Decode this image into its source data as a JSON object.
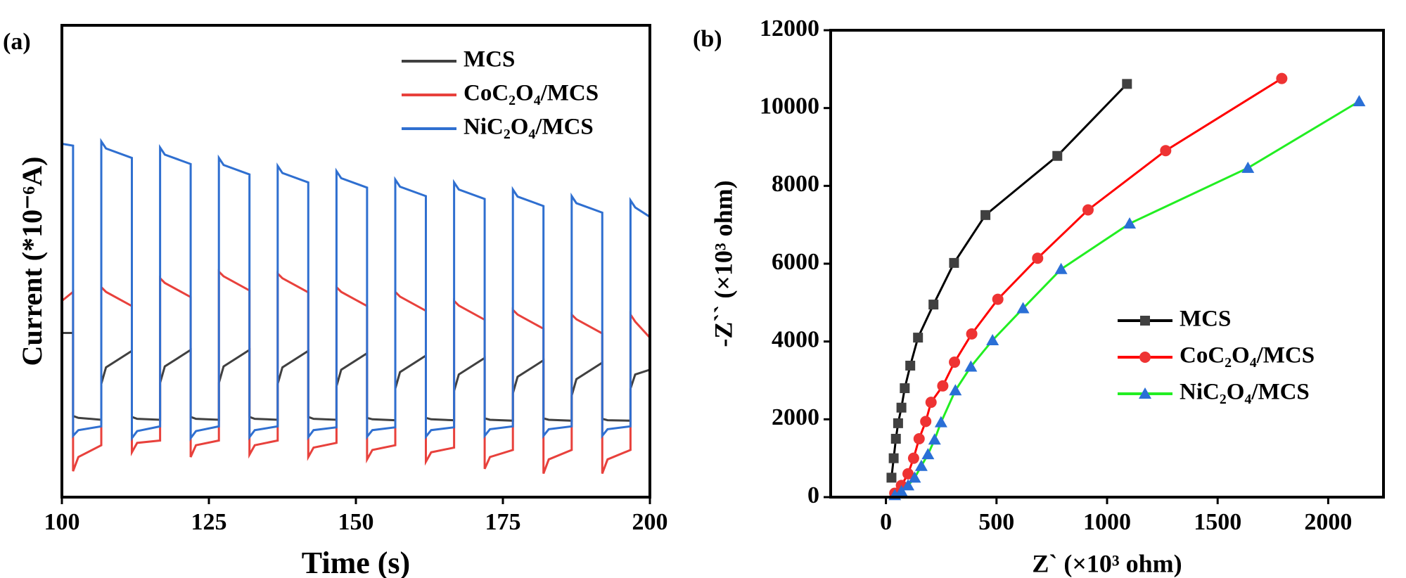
{
  "chart_data": [
    {
      "type": "line",
      "panel_label": "(a)",
      "xlabel": "Time (s)",
      "ylabel": "Current (*10⁻⁶A)",
      "xlim": [
        100,
        200
      ],
      "xticks": [
        100,
        125,
        150,
        175,
        200
      ],
      "ylim": [
        0,
        10
      ],
      "legend": "upper right",
      "x": [
        100,
        101.9,
        101.9,
        102.8,
        106.7,
        106.7,
        107.5,
        111.9,
        111.9,
        112.8,
        116.7,
        116.7,
        117.5,
        121.9,
        121.9,
        122.8,
        126.7,
        126.7,
        127.5,
        131.9,
        131.9,
        132.8,
        136.7,
        136.7,
        137.5,
        141.9,
        141.9,
        142.8,
        146.7,
        146.7,
        147.5,
        151.9,
        151.9,
        152.8,
        156.7,
        156.7,
        157.5,
        161.9,
        161.9,
        162.8,
        166.7,
        166.7,
        167.5,
        171.9,
        171.9,
        172.8,
        176.7,
        176.7,
        177.5,
        181.9,
        181.9,
        182.8,
        186.7,
        186.7,
        187.5,
        191.9,
        191.9,
        192.8,
        196.7,
        196.7,
        197.5,
        200
      ],
      "series": [
        {
          "name": "MCS",
          "color": "#404040",
          "values": [
            3.48,
            3.48,
            1.72,
            1.68,
            1.64,
            2.4,
            2.75,
            3.1,
            1.7,
            1.66,
            1.64,
            2.42,
            2.77,
            3.12,
            1.7,
            1.66,
            1.64,
            2.42,
            2.77,
            3.12,
            1.7,
            1.66,
            1.64,
            2.4,
            2.75,
            3.1,
            1.7,
            1.66,
            1.64,
            2.35,
            2.7,
            3.05,
            1.68,
            1.65,
            1.63,
            2.3,
            2.65,
            3.0,
            1.68,
            1.65,
            1.63,
            2.25,
            2.6,
            2.95,
            1.67,
            1.64,
            1.62,
            2.2,
            2.55,
            2.9,
            1.67,
            1.64,
            1.62,
            2.15,
            2.5,
            2.85,
            1.66,
            1.63,
            1.62,
            2.3,
            2.6,
            2.7
          ]
        },
        {
          "name": "CoC₂O₄/MCS",
          "color": "#e8413c",
          "values": [
            4.16,
            4.35,
            0.55,
            0.85,
            1.1,
            4.45,
            4.35,
            4.05,
            0.95,
            1.15,
            1.2,
            4.64,
            4.54,
            4.24,
            0.85,
            1.1,
            1.2,
            4.78,
            4.68,
            4.38,
            0.9,
            1.1,
            1.2,
            4.74,
            4.64,
            4.34,
            0.85,
            1.05,
            1.15,
            4.45,
            4.35,
            4.05,
            0.8,
            1.0,
            1.1,
            4.35,
            4.25,
            3.95,
            0.75,
            0.95,
            1.05,
            4.16,
            4.06,
            3.76,
            0.6,
            0.85,
            1.0,
            3.97,
            3.87,
            3.57,
            0.5,
            0.8,
            1.0,
            3.87,
            3.77,
            3.47,
            0.5,
            0.8,
            1.0,
            3.87,
            3.72,
            3.38
          ]
        },
        {
          "name": "NiC₂O₄/MCS",
          "color": "#2f6fd0",
          "values": [
            7.49,
            7.45,
            1.3,
            1.42,
            1.5,
            7.54,
            7.39,
            7.19,
            1.25,
            1.4,
            1.5,
            7.41,
            7.26,
            7.06,
            1.25,
            1.4,
            1.5,
            7.19,
            7.04,
            6.84,
            1.27,
            1.42,
            1.5,
            7.02,
            6.87,
            6.67,
            1.27,
            1.42,
            1.48,
            6.91,
            6.76,
            6.56,
            1.28,
            1.42,
            1.48,
            6.73,
            6.58,
            6.38,
            1.28,
            1.42,
            1.48,
            6.67,
            6.52,
            6.32,
            1.3,
            1.44,
            1.5,
            6.52,
            6.37,
            6.17,
            1.3,
            1.44,
            1.5,
            6.38,
            6.23,
            6.03,
            1.3,
            1.44,
            1.5,
            6.29,
            6.14,
            5.94
          ]
        }
      ]
    },
    {
      "type": "line",
      "panel_label": "(b)",
      "xlabel": "Z` (×10³ ohm)",
      "ylabel": "-Z`` (×10³ ohm)",
      "xlim": [
        -250,
        2250
      ],
      "xticks": [
        0,
        500,
        1000,
        1500,
        2000
      ],
      "ylim": [
        0,
        12000
      ],
      "yticks": [
        0,
        2000,
        4000,
        6000,
        8000,
        10000,
        12000
      ],
      "legend": "center right",
      "series": [
        {
          "name": "MCS",
          "color": "#000000",
          "marker": "square",
          "marker_color": "#404040",
          "x": [
            1090,
            775,
            450,
            308,
            215,
            145,
            110,
            85,
            70,
            55,
            45,
            35,
            25
          ],
          "values": [
            10620,
            8770,
            7250,
            6020,
            4950,
            4100,
            3380,
            2800,
            2300,
            1900,
            1500,
            1000,
            500
          ]
        },
        {
          "name": "CoC₂O₄/MCS",
          "color": "#ff0000",
          "marker": "circle",
          "marker_color": "#ee3333",
          "x": [
            1790,
            1265,
            914,
            686,
            506,
            388,
            310,
            257,
            204,
            180,
            150,
            125,
            100,
            70,
            40
          ],
          "values": [
            10760,
            8906,
            7383,
            6141,
            5086,
            4195,
            3469,
            2859,
            2438,
            1945,
            1500,
            1000,
            600,
            300,
            100
          ]
        },
        {
          "name": "NiC₂O₄/MCS",
          "color": "#22ee22",
          "marker": "triangle",
          "marker_color": "#2a6fd6",
          "x": [
            2140,
            1637,
            1102,
            792,
            620,
            482,
            384,
            314,
            249,
            220,
            190,
            160,
            130,
            100,
            70,
            40
          ],
          "values": [
            10172,
            8461,
            7031,
            5859,
            4852,
            4031,
            3352,
            2742,
            1922,
            1477,
            1100,
            800,
            500,
            300,
            150,
            50
          ]
        }
      ]
    }
  ]
}
